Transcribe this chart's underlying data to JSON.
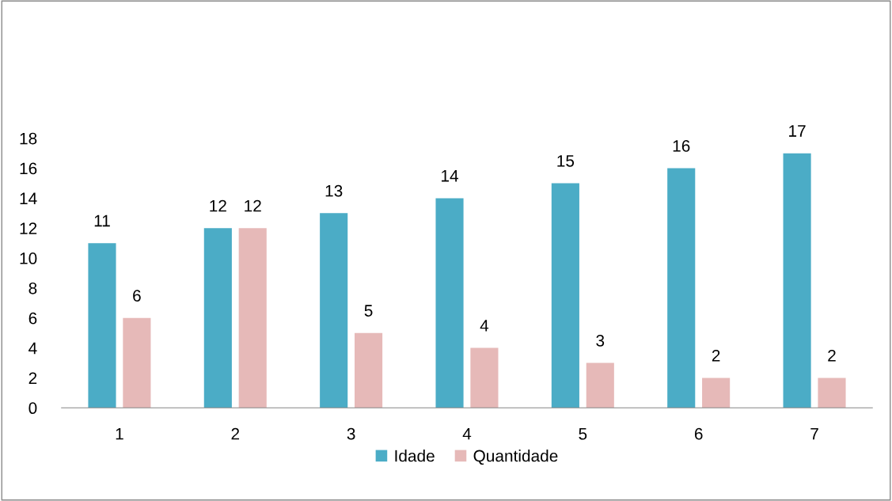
{
  "chart_data": {
    "type": "bar",
    "categories": [
      "1",
      "2",
      "3",
      "4",
      "5",
      "6",
      "7"
    ],
    "series": [
      {
        "name": "Idade",
        "color": "#4bacc6",
        "values": [
          11,
          12,
          13,
          14,
          15,
          16,
          17
        ]
      },
      {
        "name": "Quantidade",
        "color": "#e6b9b8",
        "values": [
          6,
          12,
          5,
          4,
          3,
          2,
          2
        ]
      }
    ],
    "ylim": [
      0,
      18
    ],
    "yticks": [
      0,
      2,
      4,
      6,
      8,
      10,
      12,
      14,
      16,
      18
    ],
    "data_labels": true,
    "grid": false,
    "legend": "bottom"
  }
}
